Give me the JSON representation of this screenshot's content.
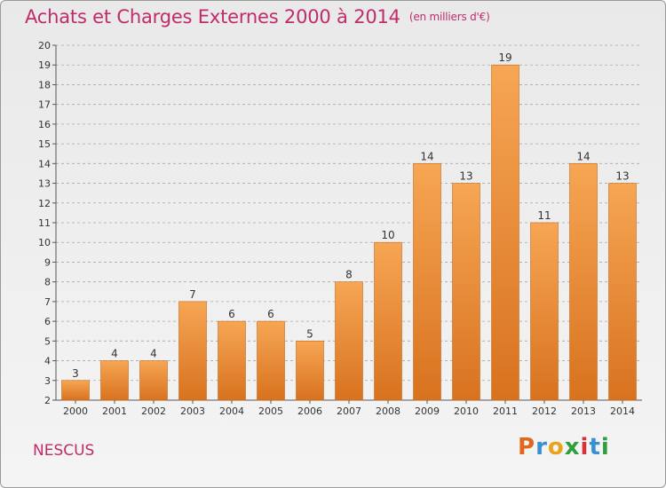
{
  "title": "Achats et Charges Externes 2000 à 2014",
  "unit_label": "(en milliers d'€)",
  "commune": "NESCUS",
  "logo_letters": [
    "P",
    "r",
    "o",
    "x",
    "i",
    "t",
    "i"
  ],
  "colors": {
    "title": "#c02c6a",
    "bar_light": "#f6a654",
    "bar_dark": "#d8721f",
    "grid": "#9a9a9a"
  },
  "chart_data": {
    "type": "bar",
    "title": "Achats et Charges Externes 2000 à 2014",
    "xlabel": "",
    "ylabel": "",
    "ylim": [
      2,
      20
    ],
    "grid": true,
    "categories": [
      "2000",
      "2001",
      "2002",
      "2003",
      "2004",
      "2005",
      "2006",
      "2007",
      "2008",
      "2009",
      "2010",
      "2011",
      "2012",
      "2013",
      "2014"
    ],
    "values": [
      3,
      4,
      4,
      7,
      6,
      6,
      5,
      8,
      10,
      14,
      13,
      19,
      11,
      14,
      13
    ],
    "y_ticks": [
      2,
      3,
      4,
      5,
      6,
      7,
      8,
      9,
      10,
      11,
      12,
      13,
      14,
      15,
      16,
      17,
      18,
      19,
      20
    ]
  }
}
